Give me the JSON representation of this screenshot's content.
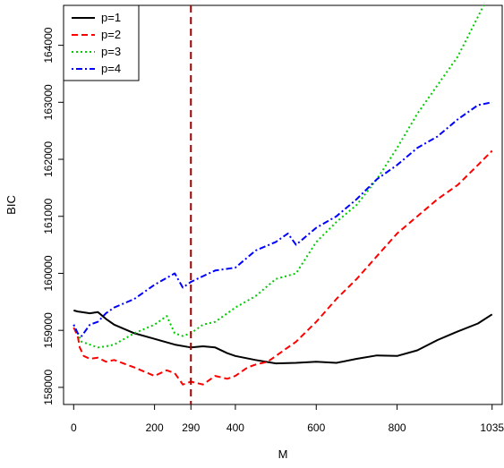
{
  "chart_data": {
    "type": "line",
    "title": "",
    "xlabel": "M",
    "ylabel": "BIC",
    "xlim": [
      -25,
      1060
    ],
    "ylim": [
      157700,
      164700
    ],
    "x_ticks": [
      0,
      200,
      290,
      400,
      600,
      800,
      1035
    ],
    "x_tick_labels": [
      "0",
      "200",
      "290",
      "400",
      "600",
      "800",
      "1035"
    ],
    "y_ticks": [
      158000,
      159000,
      160000,
      161000,
      162000,
      163000,
      164000
    ],
    "y_tick_labels": [
      "158000",
      "159000",
      "160000",
      "161000",
      "162000",
      "163000",
      "164000"
    ],
    "vline": {
      "x": 290,
      "color": "#a00000",
      "style": "dashed"
    },
    "legend": {
      "position": "top-left"
    },
    "grid": false,
    "series": [
      {
        "name": "p=1",
        "color": "#000000",
        "style": "solid",
        "x": [
          0,
          10,
          20,
          40,
          60,
          80,
          100,
          150,
          200,
          250,
          290,
          320,
          350,
          380,
          400,
          450,
          500,
          550,
          600,
          650,
          700,
          750,
          800,
          850,
          900,
          950,
          1000,
          1035
        ],
        "y": [
          159350,
          159330,
          159320,
          159300,
          159320,
          159200,
          159100,
          158950,
          158850,
          158750,
          158700,
          158720,
          158700,
          158600,
          158550,
          158480,
          158420,
          158430,
          158450,
          158430,
          158500,
          158560,
          158550,
          158650,
          158830,
          158980,
          159120,
          159280
        ]
      },
      {
        "name": "p=2",
        "color": "#ff0000",
        "style": "dashed",
        "x": [
          0,
          10,
          15,
          25,
          40,
          60,
          80,
          100,
          150,
          200,
          230,
          250,
          270,
          290,
          320,
          350,
          380,
          400,
          430,
          450,
          480,
          500,
          550,
          600,
          650,
          700,
          750,
          800,
          850,
          900,
          950,
          1000,
          1035
        ],
        "y": [
          159050,
          158900,
          158700,
          158550,
          158500,
          158520,
          158450,
          158480,
          158350,
          158200,
          158300,
          158250,
          158050,
          158100,
          158050,
          158200,
          158150,
          158200,
          158350,
          158400,
          158450,
          158550,
          158800,
          159150,
          159550,
          159900,
          160300,
          160700,
          161000,
          161300,
          161550,
          161900,
          162150
        ]
      },
      {
        "name": "p=3",
        "color": "#00cc00",
        "style": "dotted",
        "x": [
          0,
          10,
          20,
          40,
          60,
          80,
          100,
          150,
          200,
          230,
          250,
          270,
          290,
          320,
          350,
          380,
          400,
          450,
          500,
          550,
          600,
          650,
          700,
          750,
          800,
          850,
          900,
          950,
          1000,
          1035
        ],
        "y": [
          159100,
          158950,
          158800,
          158750,
          158700,
          158720,
          158750,
          158950,
          159100,
          159250,
          158950,
          158900,
          158950,
          159100,
          159150,
          159300,
          159400,
          159600,
          159900,
          160000,
          160550,
          160900,
          161200,
          161650,
          162200,
          162800,
          163300,
          163800,
          164500,
          165000
        ]
      },
      {
        "name": "p=4",
        "color": "#0000ff",
        "style": "dashdot",
        "x": [
          0,
          10,
          20,
          40,
          60,
          80,
          100,
          150,
          200,
          250,
          270,
          290,
          320,
          350,
          400,
          450,
          500,
          530,
          550,
          600,
          650,
          700,
          750,
          800,
          850,
          900,
          950,
          1000,
          1035
        ],
        "y": [
          159100,
          158950,
          158900,
          159100,
          159150,
          159300,
          159400,
          159550,
          159800,
          160000,
          159750,
          159850,
          159950,
          160050,
          160100,
          160400,
          160550,
          160700,
          160500,
          160800,
          161000,
          161300,
          161650,
          161900,
          162200,
          162400,
          162700,
          162950,
          163000
        ]
      }
    ]
  }
}
